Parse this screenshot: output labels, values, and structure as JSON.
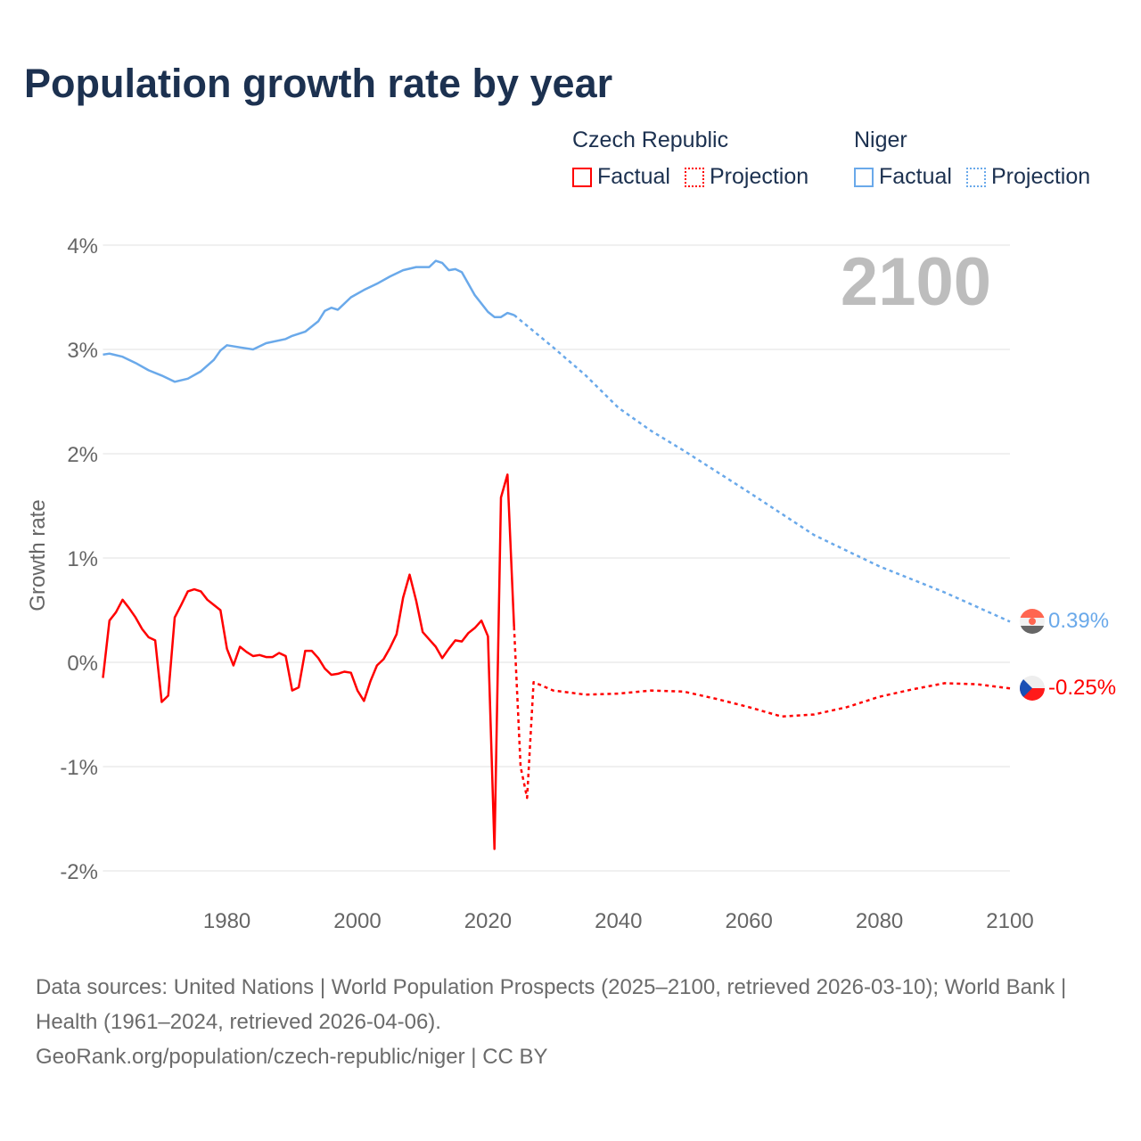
{
  "title": "Population growth rate by year",
  "legend": [
    {
      "group": "Czech Republic",
      "factual": "Factual",
      "projection": "Projection",
      "color": "#ff0000"
    },
    {
      "group": "Niger",
      "factual": "Factual",
      "projection": "Projection",
      "color": "#6aa9ea"
    }
  ],
  "year_label": "2100",
  "end_labels": {
    "niger": "0.39%",
    "czech": "-0.25%"
  },
  "footer": {
    "line1": "Data sources: United Nations | World Population Prospects (2025–2100, retrieved 2026-03-10); World Bank | Health (1961–2024, retrieved 2026-04-06).",
    "line2": "GeoRank.org/population/czech-republic/niger | CC BY"
  },
  "chart_data": {
    "type": "line",
    "title": "Population growth rate by year",
    "xlabel": "",
    "ylabel": "Growth rate",
    "xlim": [
      1961,
      2100
    ],
    "ylim": [
      -2.2,
      4.2
    ],
    "x_ticks": [
      1980,
      2000,
      2020,
      2040,
      2060,
      2080,
      2100
    ],
    "x_tick_labels": [
      "1980",
      "2000",
      "2020",
      "2040",
      "2060",
      "2080",
      "2100"
    ],
    "y_ticks": [
      4,
      3,
      2,
      1,
      0,
      -1,
      -2
    ],
    "y_tick_labels": [
      "4%",
      "3%",
      "2%",
      "1%",
      "0%",
      "-1%",
      "-2%"
    ],
    "grid": true,
    "series": [
      {
        "name": "Czech Republic Factual",
        "color": "#ff0000",
        "dashed": false,
        "x": [
          1961,
          1962,
          1963,
          1964,
          1965,
          1966,
          1967,
          1968,
          1969,
          1970,
          1971,
          1972,
          1973,
          1974,
          1975,
          1976,
          1977,
          1978,
          1979,
          1980,
          1981,
          1982,
          1983,
          1984,
          1985,
          1986,
          1987,
          1988,
          1989,
          1990,
          1991,
          1992,
          1993,
          1994,
          1995,
          1996,
          1997,
          1998,
          1999,
          2000,
          2001,
          2002,
          2003,
          2004,
          2005,
          2006,
          2007,
          2008,
          2009,
          2010,
          2011,
          2012,
          2013,
          2014,
          2015,
          2016,
          2017,
          2018,
          2019,
          2020,
          2021,
          2022,
          2023,
          2024
        ],
        "y": [
          -0.15,
          0.4,
          0.48,
          0.6,
          0.52,
          0.43,
          0.32,
          0.24,
          0.21,
          -0.38,
          -0.32,
          0.43,
          0.55,
          0.68,
          0.7,
          0.68,
          0.6,
          0.55,
          0.5,
          0.13,
          -0.03,
          0.15,
          0.1,
          0.06,
          0.07,
          0.05,
          0.05,
          0.09,
          0.06,
          -0.27,
          -0.24,
          0.11,
          0.11,
          0.04,
          -0.06,
          -0.12,
          -0.11,
          -0.09,
          -0.1,
          -0.27,
          -0.37,
          -0.18,
          -0.03,
          0.03,
          0.14,
          0.27,
          0.62,
          0.84,
          0.59,
          0.29,
          0.22,
          0.15,
          0.04,
          0.13,
          0.21,
          0.2,
          0.28,
          0.33,
          0.4,
          0.25,
          -1.79,
          1.58,
          1.8,
          0.34
        ]
      },
      {
        "name": "Czech Republic Projection",
        "color": "#ff0000",
        "dashed": true,
        "x": [
          2024,
          2025,
          2026,
          2027,
          2030,
          2035,
          2040,
          2045,
          2050,
          2055,
          2060,
          2065,
          2070,
          2075,
          2080,
          2085,
          2090,
          2095,
          2100
        ],
        "y": [
          0.34,
          -1.0,
          -1.3,
          -0.19,
          -0.27,
          -0.31,
          -0.3,
          -0.27,
          -0.28,
          -0.35,
          -0.43,
          -0.52,
          -0.5,
          -0.43,
          -0.33,
          -0.26,
          -0.2,
          -0.21,
          -0.25
        ]
      },
      {
        "name": "Niger Factual",
        "color": "#6aa9ea",
        "dashed": false,
        "x": [
          1961,
          1962,
          1964,
          1966,
          1968,
          1970,
          1972,
          1974,
          1976,
          1978,
          1979,
          1980,
          1982,
          1984,
          1986,
          1989,
          1990,
          1992,
          1994,
          1995,
          1996,
          1997,
          1999,
          2001,
          2003,
          2005,
          2007,
          2009,
          2011,
          2012,
          2013,
          2014,
          2015,
          2016,
          2018,
          2020,
          2021,
          2022,
          2023,
          2024
        ],
        "y": [
          2.95,
          2.96,
          2.93,
          2.87,
          2.8,
          2.75,
          2.69,
          2.72,
          2.79,
          2.9,
          2.99,
          3.04,
          3.02,
          3.0,
          3.06,
          3.1,
          3.13,
          3.17,
          3.27,
          3.37,
          3.4,
          3.38,
          3.5,
          3.57,
          3.63,
          3.7,
          3.76,
          3.79,
          3.79,
          3.85,
          3.83,
          3.76,
          3.77,
          3.74,
          3.52,
          3.36,
          3.31,
          3.31,
          3.35,
          3.33
        ]
      },
      {
        "name": "Niger Projection",
        "color": "#6aa9ea",
        "dashed": true,
        "x": [
          2024,
          2030,
          2035,
          2040,
          2045,
          2050,
          2060,
          2070,
          2080,
          2090,
          2100
        ],
        "y": [
          3.33,
          3.02,
          2.75,
          2.44,
          2.22,
          2.03,
          1.63,
          1.22,
          0.92,
          0.67,
          0.39
        ]
      }
    ]
  }
}
